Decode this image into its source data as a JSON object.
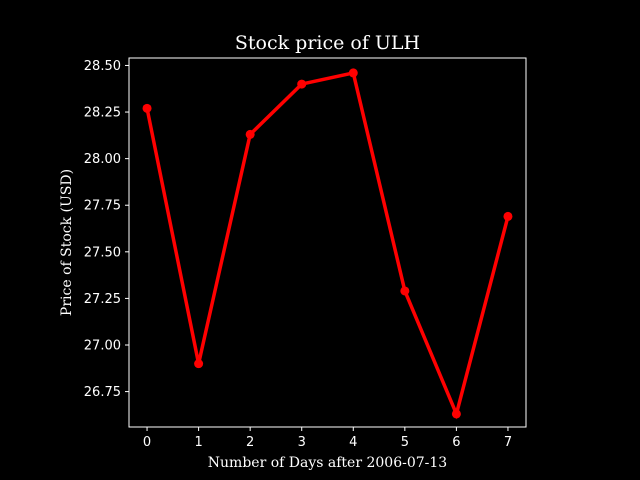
{
  "chart_data": {
    "type": "line",
    "title": "Stock price of ULH",
    "xlabel": "Number of Days after 2006-07-13",
    "ylabel": "Price of Stock (USD)",
    "x": [
      0,
      1,
      2,
      3,
      4,
      5,
      6,
      7
    ],
    "series": [
      {
        "values": [
          28.27,
          26.9,
          28.13,
          28.4,
          28.46,
          27.29,
          26.63,
          27.69
        ],
        "color": "#ff0000",
        "marker": "circle"
      }
    ],
    "xlim": [
      -0.35,
      7.35
    ],
    "ylim": [
      26.56,
      28.54
    ],
    "xticks": [
      0,
      1,
      2,
      3,
      4,
      5,
      6,
      7
    ],
    "xtick_labels": [
      "0",
      "1",
      "2",
      "3",
      "4",
      "5",
      "6",
      "7"
    ],
    "yticks": [
      26.75,
      27.0,
      27.25,
      27.5,
      27.75,
      28.0,
      28.25,
      28.5
    ],
    "ytick_labels": [
      "26.75",
      "27.00",
      "27.25",
      "27.50",
      "27.75",
      "28.00",
      "28.25",
      "28.50"
    ],
    "grid": false,
    "legend": "none",
    "background": "#000000",
    "foreground": "#ffffff"
  }
}
